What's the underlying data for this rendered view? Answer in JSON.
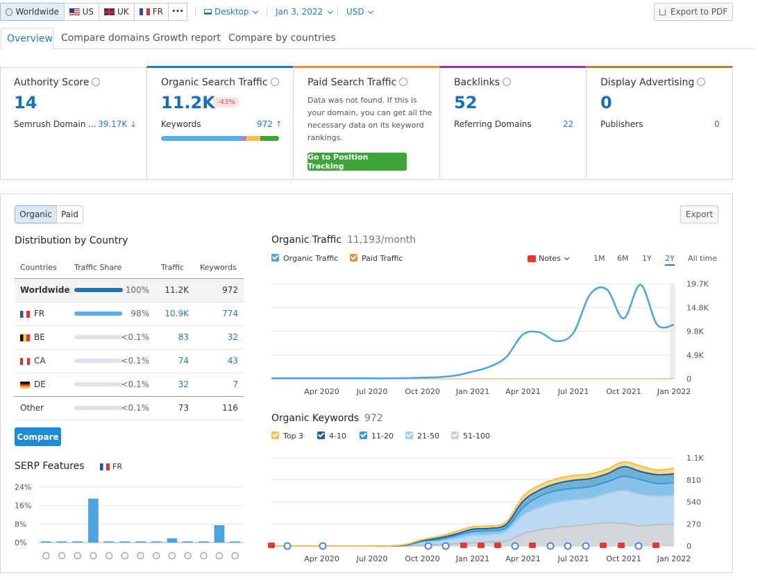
{
  "topbar": {
    "worldwide": "Worldwide",
    "us": "US",
    "uk": "UK",
    "fr": "FR",
    "more": "•••",
    "device": "Desktop",
    "date": "Jan 3, 2022",
    "currency": "USD",
    "export_pdf": "Export to PDF"
  },
  "tabs": [
    "Overview",
    "Compare domains",
    "Growth report",
    "Compare by countries"
  ],
  "cards": {
    "authority": {
      "title": "Authority Score",
      "value": "14",
      "sub_label": "Semrush Domain ...",
      "sub_value": "39.17K"
    },
    "organic": {
      "title": "Organic Search Traffic",
      "value": "11.2K",
      "badge": "-43%",
      "sub_label": "Keywords",
      "sub_value": "972"
    },
    "paid": {
      "title": "Paid Search Traffic",
      "message": "Data was not found. If this is your domain, you can get all the necessary data on its keyword rankings.",
      "button": "Go to Position Tracking"
    },
    "backlinks": {
      "title": "Backlinks",
      "value": "52",
      "sub_label": "Referring Domains",
      "sub_value": "22"
    },
    "display": {
      "title": "Display Advertising",
      "value": "0",
      "sub_label": "Publishers",
      "sub_value": "0"
    }
  },
  "colors": {
    "accent": "#1f7cc1",
    "organic_border": "#1f7cc1",
    "paid_border": "#f08a35",
    "backlinks_border": "#9a2fb8",
    "display_border": "#b5803a",
    "green": "#3ea53b",
    "badge_bg": "#fde3e3",
    "badge_text": "#d9534f"
  },
  "panel": {
    "toggle_organic": "Organic",
    "toggle_paid": "Paid",
    "export": "Export",
    "distribution": {
      "title": "Distribution by Country",
      "headers": [
        "Countries",
        "Traffic Share",
        "Traffic",
        "Keywords"
      ],
      "rows": [
        {
          "country": "Worldwide",
          "share": "100%",
          "share_value": 100,
          "traffic": "11.2K",
          "keywords": "972"
        },
        {
          "country": "FR",
          "share": "98%",
          "share_value": 98,
          "traffic": "10.9K",
          "keywords": "774"
        },
        {
          "country": "BE",
          "share": "<0.1%",
          "share_value": 0.1,
          "traffic": "83",
          "keywords": "32"
        },
        {
          "country": "CA",
          "share": "<0.1%",
          "share_value": 0.1,
          "traffic": "74",
          "keywords": "43"
        },
        {
          "country": "DE",
          "share": "<0.1%",
          "share_value": 0.1,
          "traffic": "32",
          "keywords": "7"
        },
        {
          "country": "Other",
          "share": "<0.1%",
          "share_value": 0.1,
          "traffic": "73",
          "keywords": "116"
        }
      ],
      "compare_button": "Compare"
    },
    "serp": {
      "title": "SERP Features",
      "flag": "FR"
    },
    "organic_traffic": {
      "title": "Organic Traffic",
      "subtitle": "11,193/month",
      "legend_organic": "Organic Traffic",
      "legend_paid": "Paid Traffic",
      "notes": "Notes",
      "ranges": [
        "1M",
        "6M",
        "1Y",
        "2Y",
        "All time"
      ],
      "active_range": "2Y"
    },
    "organic_keywords": {
      "title": "Organic Keywords",
      "subtitle": "972",
      "legend": [
        "Top 3",
        "4-10",
        "11-20",
        "21-50",
        "51-100"
      ]
    }
  },
  "chart_data": [
    {
      "type": "line",
      "title": "Organic Traffic",
      "x": [
        "2020-01",
        "2020-02",
        "2020-03",
        "2020-04",
        "2020-05",
        "2020-06",
        "2020-07",
        "2020-08",
        "2020-09",
        "2020-10",
        "2020-11",
        "2020-12",
        "2021-01",
        "2021-02",
        "2021-03",
        "2021-04",
        "2021-05",
        "2021-06",
        "2021-07",
        "2021-08",
        "2021-09",
        "2021-10",
        "2021-11",
        "2021-12",
        "2022-01"
      ],
      "x_tick_labels": [
        "Apr 2020",
        "Jul 2020",
        "Oct 2020",
        "Jan 2021",
        "Apr 2021",
        "Jul 2021",
        "Oct 2021",
        "Jan 2022"
      ],
      "y_tick_labels": [
        "0",
        "4.9K",
        "9.8K",
        "14.8K",
        "19.7K"
      ],
      "ylim": [
        0,
        19700
      ],
      "series": [
        {
          "name": "Organic Traffic",
          "values": [
            100,
            100,
            100,
            100,
            100,
            100,
            100,
            100,
            150,
            250,
            350,
            700,
            1500,
            2500,
            4500,
            9200,
            9600,
            7800,
            9500,
            17500,
            18500,
            12500,
            19500,
            11200,
            11200
          ]
        },
        {
          "name": "Paid Traffic",
          "values": [
            0,
            0,
            0,
            0,
            0,
            0,
            0,
            0,
            0,
            0,
            0,
            0,
            0,
            0,
            0,
            0,
            0,
            0,
            0,
            0,
            0,
            0,
            0,
            0,
            0
          ]
        }
      ]
    },
    {
      "type": "area",
      "title": "Organic Keywords",
      "x": [
        "2020-01",
        "2020-02",
        "2020-03",
        "2020-04",
        "2020-05",
        "2020-06",
        "2020-07",
        "2020-08",
        "2020-09",
        "2020-10",
        "2020-11",
        "2020-12",
        "2021-01",
        "2021-02",
        "2021-03",
        "2021-04",
        "2021-05",
        "2021-06",
        "2021-07",
        "2021-08",
        "2021-09",
        "2021-10",
        "2021-11",
        "2021-12",
        "2022-01"
      ],
      "x_tick_labels": [
        "Apr 2020",
        "Jul 2020",
        "Oct 2020",
        "Jan 2021",
        "Apr 2021",
        "Jul 2021",
        "Oct 2021",
        "Jan 2022"
      ],
      "y_tick_labels": [
        "0",
        "270",
        "540",
        "810",
        "1.1K"
      ],
      "ylim": [
        0,
        1100
      ],
      "series": [
        {
          "name": "51-100",
          "values": [
            0,
            0,
            0,
            0,
            0,
            0,
            0,
            0,
            0,
            10,
            20,
            30,
            40,
            50,
            60,
            150,
            200,
            230,
            250,
            270,
            290,
            280,
            250,
            270,
            272
          ]
        },
        {
          "name": "21-50",
          "values": [
            0,
            0,
            0,
            0,
            0,
            0,
            0,
            0,
            5,
            40,
            60,
            90,
            130,
            140,
            180,
            380,
            480,
            540,
            570,
            590,
            650,
            690,
            640,
            620,
            630
          ]
        },
        {
          "name": "11-20",
          "values": [
            0,
            0,
            0,
            0,
            0,
            0,
            0,
            0,
            10,
            60,
            80,
            130,
            180,
            190,
            230,
            480,
            620,
            690,
            720,
            740,
            800,
            870,
            830,
            780,
            790
          ]
        },
        {
          "name": "4-10",
          "values": [
            0,
            0,
            0,
            0,
            0,
            0,
            0,
            0,
            15,
            70,
            100,
            150,
            210,
            220,
            270,
            560,
            700,
            780,
            820,
            840,
            900,
            990,
            930,
            890,
            900
          ]
        },
        {
          "name": "Top 3",
          "values": [
            0,
            0,
            0,
            0,
            0,
            0,
            0,
            0,
            20,
            80,
            120,
            180,
            240,
            250,
            300,
            620,
            760,
            840,
            880,
            900,
            960,
            1050,
            1000,
            950,
            972
          ]
        }
      ]
    },
    {
      "type": "bar",
      "title": "SERP Features",
      "y_tick_labels": [
        "0%",
        "8%",
        "16%",
        "24%"
      ],
      "ylim": [
        0,
        24
      ],
      "values": [
        0.5,
        0.5,
        0.5,
        19,
        0.5,
        0.5,
        0.5,
        0.5,
        1.8,
        0.5,
        0.5,
        7.5,
        0.5
      ],
      "icons": [
        "graduation-cap",
        "map-pin",
        "document",
        "image",
        "link",
        "star",
        "play",
        "video",
        "crown",
        "picture",
        "play-circle",
        "question-box",
        "question-circle"
      ]
    }
  ]
}
